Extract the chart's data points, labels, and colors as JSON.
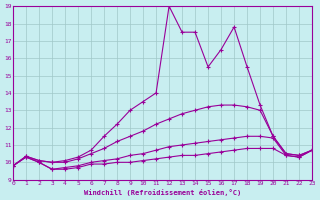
{
  "xlabel": "Windchill (Refroidissement éolien,°C)",
  "bg_color": "#c8eef0",
  "grid_color": "#a0c8c8",
  "line_color": "#990099",
  "xlim": [
    0,
    23
  ],
  "ylim": [
    9,
    19
  ],
  "xticks": [
    0,
    1,
    2,
    3,
    4,
    5,
    6,
    7,
    8,
    9,
    10,
    11,
    12,
    13,
    14,
    15,
    16,
    17,
    18,
    19,
    20,
    21,
    22,
    23
  ],
  "yticks": [
    9,
    10,
    11,
    12,
    13,
    14,
    15,
    16,
    17,
    18,
    19
  ],
  "series": [
    {
      "x": [
        0,
        1,
        2,
        3,
        4,
        5,
        6,
        7,
        8,
        9,
        10,
        11,
        12,
        13,
        14,
        15,
        16,
        17,
        18,
        19,
        20,
        21,
        22,
        23
      ],
      "y": [
        9.8,
        10.3,
        10.0,
        9.6,
        9.6,
        9.7,
        9.9,
        9.9,
        10.0,
        10.0,
        10.1,
        10.2,
        10.3,
        10.4,
        10.4,
        10.5,
        10.6,
        10.7,
        10.8,
        10.8,
        10.8,
        10.4,
        10.3,
        10.7
      ]
    },
    {
      "x": [
        0,
        1,
        2,
        3,
        4,
        5,
        6,
        7,
        8,
        9,
        10,
        11,
        12,
        13,
        14,
        15,
        16,
        17,
        18,
        19,
        20,
        21,
        22,
        23
      ],
      "y": [
        9.8,
        10.3,
        10.0,
        9.6,
        9.7,
        9.8,
        10.0,
        10.1,
        10.2,
        10.4,
        10.5,
        10.7,
        10.9,
        11.0,
        11.1,
        11.2,
        11.3,
        11.4,
        11.5,
        11.5,
        11.4,
        10.4,
        10.3,
        10.7
      ]
    },
    {
      "x": [
        0,
        1,
        2,
        3,
        4,
        5,
        6,
        7,
        8,
        9,
        10,
        11,
        12,
        13,
        14,
        15,
        16,
        17,
        18,
        19,
        20,
        21,
        22,
        23
      ],
      "y": [
        9.8,
        10.35,
        10.1,
        10.0,
        10.0,
        10.2,
        10.5,
        10.8,
        11.2,
        11.5,
        11.8,
        12.2,
        12.5,
        12.8,
        13.0,
        13.2,
        13.3,
        13.3,
        13.2,
        13.0,
        11.5,
        10.5,
        10.4,
        10.7
      ]
    },
    {
      "x": [
        0,
        1,
        2,
        3,
        4,
        5,
        6,
        7,
        8,
        9,
        10,
        11,
        12,
        13,
        14,
        15,
        16,
        17,
        18,
        19,
        20,
        21,
        22,
        23
      ],
      "y": [
        9.8,
        10.35,
        10.1,
        10.0,
        10.1,
        10.3,
        10.7,
        11.5,
        12.2,
        13.0,
        13.5,
        14.0,
        19.0,
        17.5,
        17.5,
        15.5,
        16.5,
        17.8,
        15.5,
        13.3,
        11.5,
        10.5,
        10.4,
        10.7
      ]
    }
  ]
}
